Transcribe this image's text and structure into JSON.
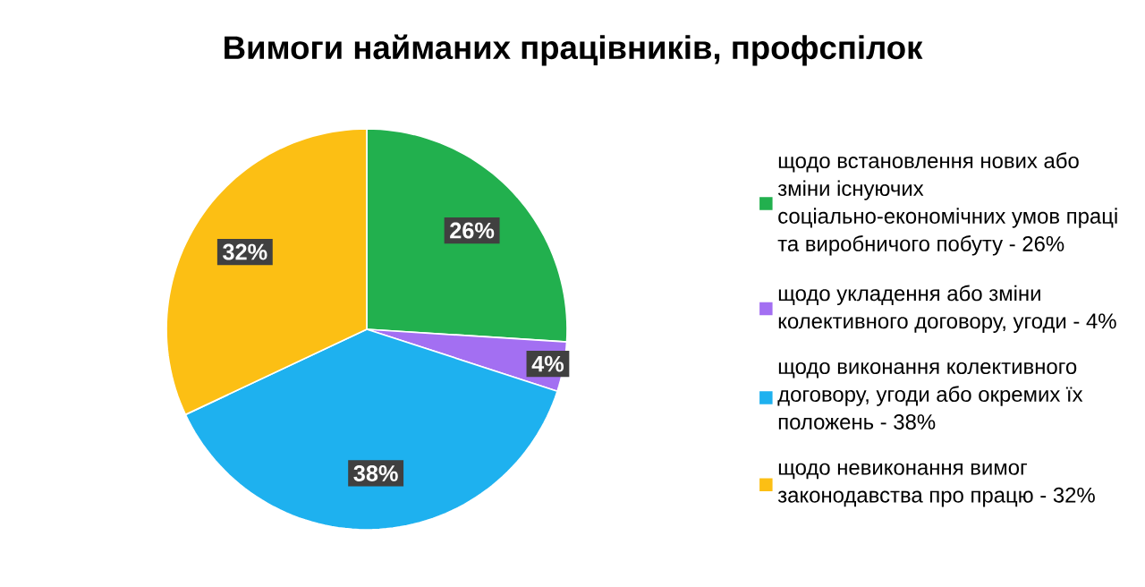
{
  "chart_data": {
    "type": "pie",
    "title": "Вимоги найманих працівників, профспілок",
    "categories": [
      "щодо встановлення нових або зміни існуючих соціально-економічних умов праці та виробничого побуту - 26%",
      "щодо укладення або зміни колективного договору, угоди - 4%",
      "щодо виконання колективного договору, угоди або окремих їх положень - 38%",
      "щодо невиконання вимог законодавства про працю - 32%"
    ],
    "values": [
      26,
      4,
      38,
      32
    ],
    "value_labels": [
      "26%",
      "4%",
      "38%",
      "32%"
    ],
    "colors": [
      "#22b04e",
      "#a36ff2",
      "#1eb1ef",
      "#fcbf14"
    ],
    "legend": "right"
  }
}
